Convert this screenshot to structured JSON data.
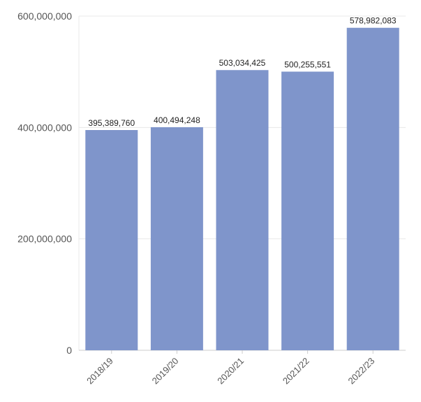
{
  "chart_data": {
    "type": "bar",
    "title": "",
    "xlabel": "",
    "ylabel": "",
    "categories": [
      "2018/19",
      "2019/20",
      "2020/21",
      "2021/22",
      "2022/23"
    ],
    "values": [
      395389760,
      400494248,
      503034425,
      500255551,
      578982083
    ],
    "value_labels": [
      "395,389,760",
      "400,494,248",
      "503,034,425",
      "500,255,551",
      "578,982,083"
    ],
    "ylim": [
      0,
      600000000
    ],
    "y_ticks": [
      0,
      200000000,
      400000000,
      600000000
    ],
    "y_tick_labels": [
      "0",
      "200,000,000",
      "400,000,000",
      "600,000,000"
    ],
    "grid": true,
    "legend": "none",
    "bar_color": "#7f95cb"
  }
}
